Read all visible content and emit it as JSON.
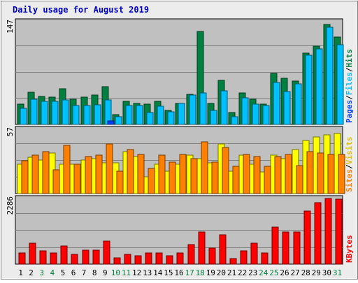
{
  "chart_data": {
    "type": "bar",
    "title": "Daily usage for August 2019",
    "categories": [
      "1",
      "2",
      "3",
      "4",
      "5",
      "6",
      "7",
      "8",
      "9",
      "10",
      "11",
      "12",
      "13",
      "14",
      "15",
      "16",
      "17",
      "18",
      "19",
      "20",
      "21",
      "22",
      "23",
      "24",
      "25",
      "26",
      "27",
      "28",
      "29",
      "30",
      "31"
    ],
    "weekend_days": [
      "3",
      "4",
      "10",
      "11",
      "17",
      "18",
      "24",
      "25",
      "31"
    ],
    "panels": [
      {
        "id": "hits",
        "ymax": 147,
        "ymax_label": "147",
        "axis_labels": [
          "Pages",
          "/",
          "Files",
          "/",
          "Hits"
        ],
        "series": [
          {
            "name": "Hits",
            "values": [
              29,
              46,
              40,
              39,
              51,
              36,
              39,
              42,
              54,
              14,
              33,
              30,
              29,
              33,
              20,
              30,
              43,
              133,
              30,
              63,
              17,
              45,
              36,
              29,
              73,
              66,
              62,
              102,
              112,
              143,
              125
            ]
          },
          {
            "name": "Files",
            "values": [
              23,
              36,
              33,
              33,
              35,
              27,
              27,
              28,
              35,
              11,
              27,
              27,
              17,
              26,
              18,
              30,
              42,
              45,
              20,
              48,
              11,
              38,
              29,
              27,
              60,
              47,
              58,
              99,
              108,
              139,
              114
            ]
          },
          {
            "name": "Pages",
            "values": [
              0,
              0,
              0,
              0,
              0,
              0,
              0,
              0,
              5,
              0,
              0,
              0,
              0,
              0,
              0,
              0,
              0,
              0,
              0,
              0,
              0,
              0,
              0,
              0,
              0,
              0,
              0,
              0,
              0,
              0,
              0
            ]
          }
        ],
        "colors": [
          "#008040",
          "#00c0ff",
          "#0040ff"
        ]
      },
      {
        "id": "visits",
        "ymax": 57,
        "ymax_label": "57",
        "axis_labels": [
          "Sites",
          "/",
          "Visits"
        ],
        "series": [
          {
            "name": "Visits",
            "values": [
              26,
              32,
              30,
              36,
              26,
              26,
              30,
              31,
              27,
              27,
              37,
              33,
              15,
              26,
              20,
              26,
              34,
              31,
              27,
              44,
              20,
              34,
              26,
              19,
              34,
              31,
              39,
              47,
              50,
              52,
              53
            ]
          },
          {
            "name": "Sites",
            "values": [
              29,
              34,
              37,
              21,
              43,
              26,
              33,
              34,
              44,
              20,
              39,
              35,
              22,
              34,
              28,
              35,
              31,
              46,
              28,
              41,
              24,
              35,
              33,
              24,
              33,
              35,
              25,
              37,
              36,
              35,
              35
            ]
          }
        ],
        "colors": [
          "#ffff00",
          "#ff8000"
        ]
      },
      {
        "id": "kbytes",
        "ymax": 2286,
        "ymax_label": "2286",
        "axis_labels": [
          "KBytes"
        ],
        "series": [
          {
            "name": "KBytes",
            "values": [
              400,
              730,
              460,
              400,
              630,
              330,
              490,
              490,
              800,
              220,
              330,
              290,
              390,
              390,
              290,
              400,
              690,
              1120,
              560,
              1030,
              190,
              450,
              720,
              400,
              1300,
              1120,
              1130,
              1840,
              2130,
              2280,
              2260
            ]
          }
        ],
        "colors": [
          "#ff0000"
        ]
      }
    ],
    "colors": {
      "background": "#c0c0c0",
      "page": "#ececec",
      "title": "#0000c0",
      "weekday_label": "#000000",
      "weekend_label": "#008040",
      "grid": "#808080"
    },
    "grid": true
  }
}
